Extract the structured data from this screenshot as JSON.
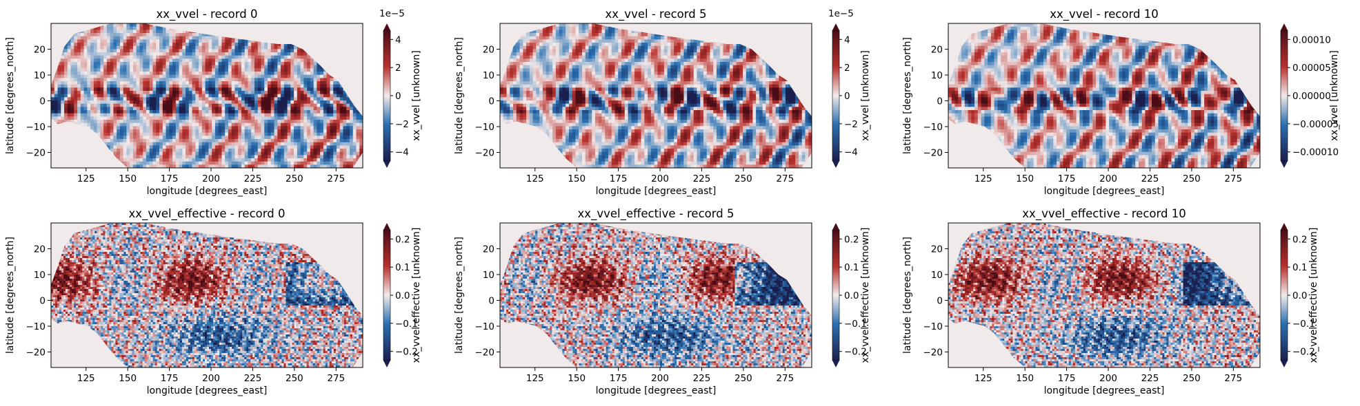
{
  "colors": {
    "cmap_low": "#1b1f4e",
    "cmap_mid_low": "#2a6fb0",
    "cmap_mid": "#f2eaea",
    "cmap_mid_high": "#b8322e",
    "cmap_high": "#4a0d17",
    "land": "#f1eaea",
    "axis": "#000000"
  },
  "chart_data": [
    {
      "type": "heatmap",
      "title": "xx_vvel - record 0",
      "xlabel": "longitude [degrees_east]",
      "ylabel": "latitude [degrees_north]",
      "xticks": [
        "125",
        "150",
        "175",
        "200",
        "225",
        "250",
        "275"
      ],
      "yticks": [
        "20",
        "10",
        "0",
        "−10",
        "−20"
      ],
      "xlim": [
        104,
        291
      ],
      "ylim": [
        -26,
        30
      ],
      "colorbar": {
        "label": "xx_vvel [unknown]",
        "offset": "1e−5",
        "ticks": [
          "4",
          "2",
          "0",
          "−2",
          "−4"
        ],
        "range": [
          -4.8e-05,
          4.8e-05
        ]
      },
      "field": "xx_vvel"
    },
    {
      "type": "heatmap",
      "title": "xx_vvel - record 5",
      "xlabel": "longitude [degrees_east]",
      "ylabel": "latitude [degrees_north]",
      "xticks": [
        "125",
        "150",
        "175",
        "200",
        "225",
        "250",
        "275"
      ],
      "yticks": [
        "20",
        "10",
        "0",
        "−10",
        "−20"
      ],
      "xlim": [
        104,
        291
      ],
      "ylim": [
        -26,
        30
      ],
      "colorbar": {
        "label": "xx_vvel [unknown]",
        "offset": "1e−5",
        "ticks": [
          "4",
          "2",
          "0",
          "−2",
          "−4"
        ],
        "range": [
          -4.8e-05,
          4.8e-05
        ]
      },
      "field": "xx_vvel"
    },
    {
      "type": "heatmap",
      "title": "xx_vvel - record 10",
      "xlabel": "longitude [degrees_east]",
      "ylabel": "latitude [degrees_north]",
      "xticks": [
        "125",
        "150",
        "175",
        "200",
        "225",
        "250",
        "275"
      ],
      "yticks": [
        "20",
        "10",
        "0",
        "−10",
        "−20"
      ],
      "xlim": [
        104,
        291
      ],
      "ylim": [
        -26,
        30
      ],
      "colorbar": {
        "label": "xx_vvel [unknown]",
        "offset": "",
        "ticks": [
          "0.00010",
          "0.00005",
          "0.00000",
          "−0.00005",
          "−0.00010"
        ],
        "range": [
          -0.00011,
          0.00011
        ]
      },
      "field": "xx_vvel"
    },
    {
      "type": "heatmap",
      "title": "xx_vvel_effective - record 0",
      "xlabel": "longitude [degrees_east]",
      "ylabel": "latitude [degrees_north]",
      "xticks": [
        "125",
        "150",
        "175",
        "200",
        "225",
        "250",
        "275"
      ],
      "yticks": [
        "20",
        "10",
        "0",
        "−10",
        "−20"
      ],
      "xlim": [
        104,
        291
      ],
      "ylim": [
        -26,
        30
      ],
      "colorbar": {
        "label": "xx_vvel.effective [unknown]",
        "offset": "",
        "ticks": [
          "0.2",
          "0.1",
          "0.0",
          "−0.1",
          "−0.2"
        ],
        "range": [
          -0.27,
          0.27
        ]
      },
      "field": "xx_vvel_effective"
    },
    {
      "type": "heatmap",
      "title": "xx_vvel_effective - record 5",
      "xlabel": "longitude [degrees_east]",
      "ylabel": "latitude [degrees_north]",
      "xticks": [
        "125",
        "150",
        "175",
        "200",
        "225",
        "250",
        "275"
      ],
      "yticks": [
        "20",
        "10",
        "0",
        "−10",
        "−20"
      ],
      "xlim": [
        104,
        291
      ],
      "ylim": [
        -26,
        30
      ],
      "colorbar": {
        "label": "xx_vvel.effective [unknown]",
        "offset": "",
        "ticks": [
          "0.2",
          "0.1",
          "0.0",
          "−0.1",
          "−0.2"
        ],
        "range": [
          -0.27,
          0.27
        ]
      },
      "field": "xx_vvel_effective"
    },
    {
      "type": "heatmap",
      "title": "xx_vvel_effective - record 10",
      "xlabel": "longitude [degrees_east]",
      "ylabel": "latitude [degrees_north]",
      "xticks": [
        "125",
        "150",
        "175",
        "200",
        "225",
        "250",
        "275"
      ],
      "yticks": [
        "20",
        "10",
        "0",
        "−10",
        "−20"
      ],
      "xlim": [
        104,
        291
      ],
      "ylim": [
        -26,
        30
      ],
      "colorbar": {
        "label": "xx_vvel.effective [unknown]",
        "offset": "",
        "ticks": [
          "0.2",
          "0.1",
          "0.0",
          "−0.1",
          "−0.2"
        ],
        "range": [
          -0.27,
          0.27
        ]
      },
      "field": "xx_vvel_effective"
    }
  ]
}
